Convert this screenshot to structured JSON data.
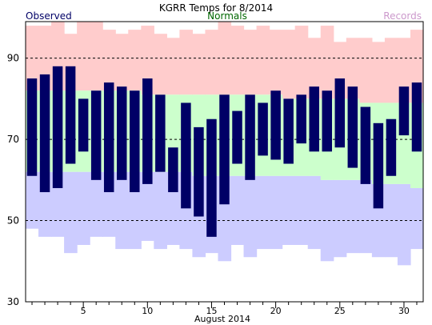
{
  "chart_data": {
    "type": "bar",
    "title": "KGRR Temps for 8/2014",
    "xlabel": "August 2014",
    "ylabel": "",
    "legend": [
      {
        "name": "Observed",
        "color": "#000066"
      },
      {
        "name": "Normals",
        "color": "#006600"
      },
      {
        "name": "Records",
        "color": "#cc99cc"
      }
    ],
    "ylim": [
      30,
      99
    ],
    "yticks": [
      30,
      50,
      70,
      90
    ],
    "xticks": [
      5,
      10,
      15,
      20,
      25,
      30
    ],
    "gridlines": [
      50,
      70,
      90
    ],
    "x": [
      1,
      2,
      3,
      4,
      5,
      6,
      7,
      8,
      9,
      10,
      11,
      12,
      13,
      14,
      15,
      16,
      17,
      18,
      19,
      20,
      21,
      22,
      23,
      24,
      25,
      26,
      27,
      28,
      29,
      30,
      31
    ],
    "series": [
      {
        "name": "Observed",
        "color": "#000066",
        "high": [
          85,
          86,
          88,
          88,
          80,
          82,
          84,
          83,
          82,
          85,
          81,
          68,
          79,
          73,
          75,
          81,
          77,
          81,
          79,
          82,
          80,
          81,
          83,
          82,
          85,
          83,
          78,
          74,
          75,
          83,
          84
        ],
        "low": [
          61,
          57,
          58,
          64,
          67,
          60,
          57,
          60,
          57,
          59,
          62,
          57,
          53,
          51,
          46,
          54,
          64,
          60,
          66,
          65,
          64,
          69,
          67,
          67,
          68,
          63,
          59,
          53,
          61,
          71,
          67
        ]
      },
      {
        "name": "Normals",
        "color": "#ccffcc",
        "high": [
          82,
          82,
          82,
          82,
          82,
          82,
          82,
          82,
          82,
          81,
          81,
          81,
          81,
          81,
          81,
          81,
          81,
          81,
          81,
          81,
          80,
          80,
          80,
          80,
          80,
          80,
          79,
          79,
          79,
          79,
          79
        ],
        "low": [
          62,
          62,
          62,
          62,
          62,
          62,
          62,
          62,
          62,
          62,
          62,
          62,
          62,
          61,
          61,
          61,
          61,
          61,
          61,
          61,
          61,
          61,
          61,
          60,
          60,
          60,
          60,
          59,
          59,
          59,
          58
        ]
      },
      {
        "name": "Records",
        "high_color": "#ffcccc",
        "low_color": "#ccccff",
        "high": [
          98,
          98,
          100,
          96,
          100,
          102,
          97,
          96,
          97,
          98,
          96,
          95,
          97,
          96,
          97,
          99,
          98,
          97,
          98,
          97,
          97,
          98,
          95,
          98,
          94,
          95,
          95,
          94,
          95,
          95,
          97
        ],
        "low": [
          48,
          46,
          46,
          42,
          44,
          46,
          46,
          43,
          43,
          45,
          43,
          44,
          43,
          41,
          42,
          40,
          44,
          41,
          43,
          43,
          44,
          44,
          43,
          40,
          41,
          42,
          42,
          41,
          41,
          39,
          43
        ]
      }
    ]
  }
}
